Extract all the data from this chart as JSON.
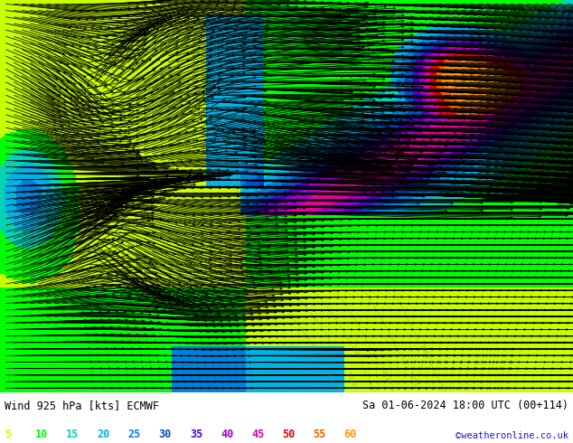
{
  "title_left": "Wind 925 hPa [kts] ECMWF",
  "title_right": "Sa 01-06-2024 18:00 UTC (00+114)",
  "copyright": "©weatheronline.co.uk",
  "legend_values": [
    5,
    10,
    15,
    20,
    25,
    30,
    35,
    40,
    45,
    50,
    55,
    60
  ],
  "legend_colors": [
    "#c8ff00",
    "#00ff00",
    "#00d4b4",
    "#00b4e6",
    "#0082dc",
    "#0050c8",
    "#5000c8",
    "#a000c8",
    "#e600a0",
    "#e60000",
    "#e66400",
    "#ff9600"
  ],
  "bg_color": "#ffffff",
  "fig_width": 6.34,
  "fig_height": 4.9,
  "dpi": 100,
  "speed_boundaries": [
    0,
    5,
    10,
    15,
    20,
    25,
    30,
    35,
    40,
    45,
    50,
    55,
    60,
    100
  ],
  "speed_colors": [
    "#ffffff",
    "#c8ff00",
    "#00ff00",
    "#00d4b4",
    "#00b4e6",
    "#0082dc",
    "#0050c8",
    "#5000c8",
    "#a000c8",
    "#e600a0",
    "#e60000",
    "#e66400",
    "#ff9600"
  ]
}
